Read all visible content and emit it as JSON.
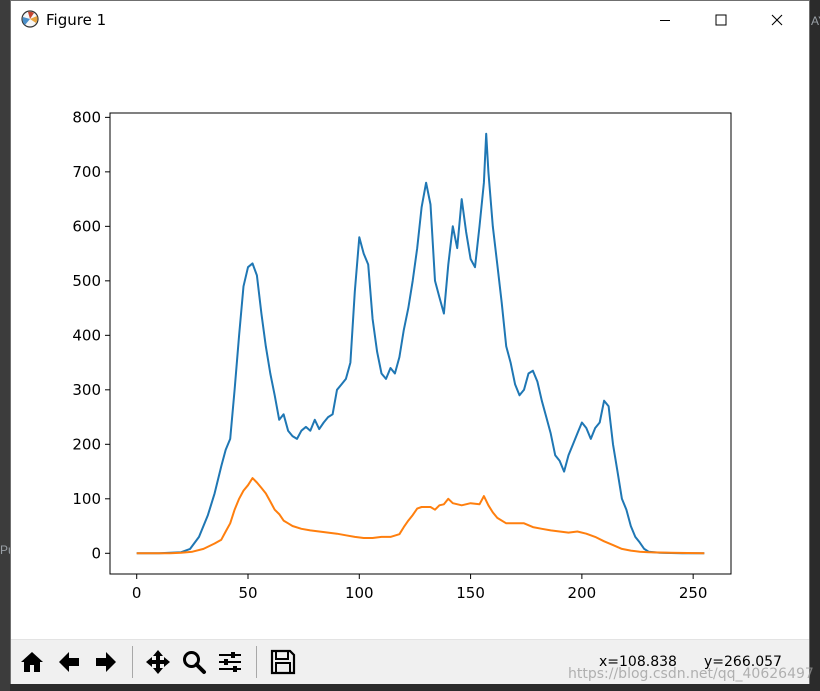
{
  "window": {
    "title": "Figure 1"
  },
  "controls": {
    "minimize": "minimize",
    "maximize": "maximize",
    "close": "close"
  },
  "toolbar": {
    "buttons": [
      "home",
      "back",
      "forward",
      "pan",
      "zoom",
      "configure-subplots",
      "save"
    ],
    "coord_x": "x=108.838",
    "coord_y": "y=266.057"
  },
  "background_fragments": {
    "right_edge": "AY",
    "left_edge": "Pu"
  },
  "watermark": "https://blog.csdn.net/qq_40626497",
  "colors": {
    "series_blue": "#1f77b4",
    "series_orange": "#ff7f0e",
    "axis": "#000000"
  },
  "chart_data": {
    "type": "line",
    "xlim": [
      -12,
      267
    ],
    "ylim": [
      -38,
      808
    ],
    "xticks": [
      0,
      50,
      100,
      150,
      200,
      250
    ],
    "yticks": [
      0,
      100,
      200,
      300,
      400,
      500,
      600,
      700,
      800
    ],
    "series": [
      {
        "color": "#1f77b4",
        "points": [
          [
            0,
            0
          ],
          [
            10,
            0
          ],
          [
            20,
            2
          ],
          [
            24,
            8
          ],
          [
            28,
            30
          ],
          [
            32,
            70
          ],
          [
            35,
            110
          ],
          [
            38,
            160
          ],
          [
            40,
            190
          ],
          [
            42,
            210
          ],
          [
            44,
            300
          ],
          [
            46,
            400
          ],
          [
            48,
            490
          ],
          [
            50,
            525
          ],
          [
            52,
            532
          ],
          [
            54,
            510
          ],
          [
            56,
            440
          ],
          [
            58,
            380
          ],
          [
            60,
            330
          ],
          [
            62,
            290
          ],
          [
            64,
            245
          ],
          [
            66,
            255
          ],
          [
            68,
            225
          ],
          [
            70,
            215
          ],
          [
            72,
            210
          ],
          [
            74,
            225
          ],
          [
            76,
            232
          ],
          [
            78,
            225
          ],
          [
            80,
            245
          ],
          [
            82,
            228
          ],
          [
            84,
            240
          ],
          [
            86,
            250
          ],
          [
            88,
            255
          ],
          [
            90,
            300
          ],
          [
            92,
            310
          ],
          [
            94,
            320
          ],
          [
            96,
            350
          ],
          [
            98,
            480
          ],
          [
            100,
            580
          ],
          [
            102,
            550
          ],
          [
            104,
            530
          ],
          [
            106,
            430
          ],
          [
            108,
            370
          ],
          [
            110,
            330
          ],
          [
            112,
            320
          ],
          [
            114,
            340
          ],
          [
            116,
            330
          ],
          [
            118,
            360
          ],
          [
            120,
            410
          ],
          [
            122,
            450
          ],
          [
            124,
            500
          ],
          [
            126,
            560
          ],
          [
            128,
            635
          ],
          [
            130,
            680
          ],
          [
            132,
            640
          ],
          [
            134,
            500
          ],
          [
            136,
            470
          ],
          [
            138,
            440
          ],
          [
            140,
            530
          ],
          [
            142,
            600
          ],
          [
            144,
            560
          ],
          [
            146,
            650
          ],
          [
            148,
            590
          ],
          [
            150,
            540
          ],
          [
            152,
            525
          ],
          [
            154,
            600
          ],
          [
            156,
            680
          ],
          [
            157,
            770
          ],
          [
            158,
            700
          ],
          [
            160,
            600
          ],
          [
            162,
            530
          ],
          [
            164,
            460
          ],
          [
            166,
            380
          ],
          [
            168,
            350
          ],
          [
            170,
            310
          ],
          [
            172,
            290
          ],
          [
            174,
            300
          ],
          [
            176,
            330
          ],
          [
            178,
            335
          ],
          [
            180,
            315
          ],
          [
            182,
            280
          ],
          [
            184,
            250
          ],
          [
            186,
            220
          ],
          [
            188,
            180
          ],
          [
            190,
            170
          ],
          [
            192,
            150
          ],
          [
            194,
            180
          ],
          [
            196,
            200
          ],
          [
            198,
            220
          ],
          [
            200,
            240
          ],
          [
            202,
            230
          ],
          [
            204,
            210
          ],
          [
            206,
            230
          ],
          [
            208,
            240
          ],
          [
            210,
            280
          ],
          [
            212,
            270
          ],
          [
            214,
            200
          ],
          [
            216,
            150
          ],
          [
            218,
            100
          ],
          [
            220,
            80
          ],
          [
            222,
            50
          ],
          [
            224,
            30
          ],
          [
            226,
            20
          ],
          [
            228,
            8
          ],
          [
            230,
            3
          ],
          [
            235,
            1
          ],
          [
            245,
            0
          ],
          [
            255,
            0
          ]
        ]
      },
      {
        "color": "#ff7f0e",
        "points": [
          [
            0,
            0
          ],
          [
            15,
            0
          ],
          [
            20,
            1
          ],
          [
            25,
            3
          ],
          [
            30,
            8
          ],
          [
            35,
            18
          ],
          [
            38,
            25
          ],
          [
            40,
            40
          ],
          [
            42,
            55
          ],
          [
            44,
            80
          ],
          [
            46,
            100
          ],
          [
            48,
            115
          ],
          [
            50,
            125
          ],
          [
            52,
            138
          ],
          [
            54,
            130
          ],
          [
            56,
            120
          ],
          [
            58,
            110
          ],
          [
            60,
            95
          ],
          [
            62,
            80
          ],
          [
            64,
            72
          ],
          [
            66,
            60
          ],
          [
            68,
            55
          ],
          [
            70,
            50
          ],
          [
            74,
            45
          ],
          [
            78,
            42
          ],
          [
            82,
            40
          ],
          [
            86,
            38
          ],
          [
            90,
            36
          ],
          [
            94,
            33
          ],
          [
            98,
            30
          ],
          [
            102,
            28
          ],
          [
            106,
            28
          ],
          [
            110,
            30
          ],
          [
            114,
            30
          ],
          [
            118,
            35
          ],
          [
            120,
            48
          ],
          [
            122,
            60
          ],
          [
            124,
            70
          ],
          [
            126,
            82
          ],
          [
            128,
            85
          ],
          [
            132,
            85
          ],
          [
            134,
            80
          ],
          [
            136,
            88
          ],
          [
            138,
            90
          ],
          [
            140,
            100
          ],
          [
            142,
            92
          ],
          [
            146,
            88
          ],
          [
            150,
            92
          ],
          [
            154,
            90
          ],
          [
            156,
            105
          ],
          [
            158,
            88
          ],
          [
            160,
            75
          ],
          [
            162,
            65
          ],
          [
            166,
            55
          ],
          [
            170,
            55
          ],
          [
            174,
            55
          ],
          [
            178,
            48
          ],
          [
            182,
            45
          ],
          [
            186,
            42
          ],
          [
            190,
            40
          ],
          [
            194,
            38
          ],
          [
            198,
            40
          ],
          [
            202,
            36
          ],
          [
            206,
            30
          ],
          [
            210,
            22
          ],
          [
            214,
            15
          ],
          [
            218,
            8
          ],
          [
            222,
            5
          ],
          [
            226,
            3
          ],
          [
            230,
            2
          ],
          [
            240,
            1
          ],
          [
            255,
            0
          ]
        ]
      }
    ]
  }
}
